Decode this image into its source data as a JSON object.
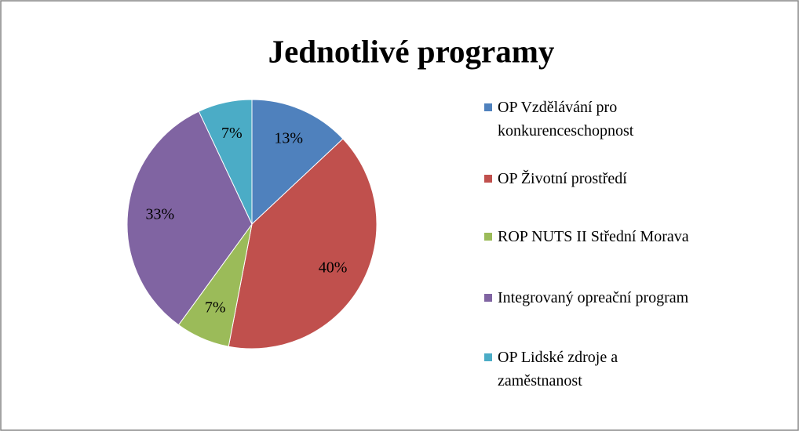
{
  "chart_data": {
    "type": "pie",
    "title": "Jednotlivé programy",
    "categories": [
      "OP Vzdělávání pro konkurenceschopnost",
      "OP Životní prostředí",
      "ROP NUTS II Střední Morava",
      "Integrovaný opreační program",
      "OP Lidské zdroje a zaměstnanost"
    ],
    "values": [
      13,
      40,
      7,
      33,
      7
    ],
    "value_labels": [
      "13%",
      "40%",
      "7%",
      "33%",
      "7%"
    ],
    "colors": [
      "#4f81bd",
      "#c0504d",
      "#9bbb59",
      "#8064a2",
      "#4bacc6"
    ],
    "legend": "right"
  }
}
